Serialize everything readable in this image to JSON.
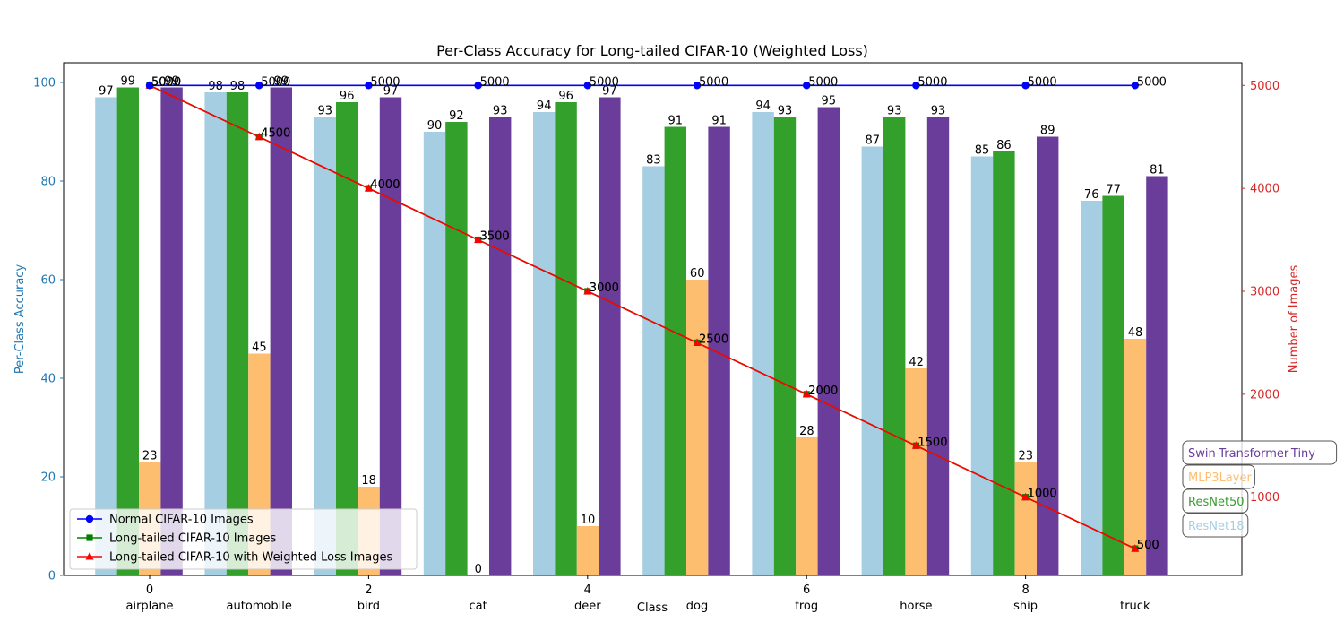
{
  "chart_data": {
    "type": "bar",
    "title": "Per-Class Accuracy for Long-tailed CIFAR-10 (Weighted Loss)",
    "xlabel": "Class",
    "ylabel": "Per-Class Accuracy",
    "ylabel_right": "Number of Images",
    "categories": [
      "airplane",
      "automobile",
      "bird",
      "cat",
      "deer",
      "dog",
      "frog",
      "horse",
      "ship",
      "truck"
    ],
    "x_ticks": [
      "0",
      "2",
      "4",
      "6",
      "8"
    ],
    "ylim": [
      0,
      104
    ],
    "ylim_right": [
      240,
      5220
    ],
    "y_ticks": [
      "0",
      "20",
      "40",
      "60",
      "80",
      "100"
    ],
    "y_ticks_right": [
      "1000",
      "2000",
      "3000",
      "4000",
      "5000"
    ],
    "bar_series": [
      {
        "name": "ResNet18",
        "color": "#a6cee3",
        "values": [
          97,
          98,
          93,
          90,
          94,
          83,
          94,
          87,
          85,
          76
        ]
      },
      {
        "name": "ResNet50",
        "color": "#33a02c",
        "values": [
          99,
          98,
          96,
          92,
          96,
          91,
          93,
          93,
          86,
          77
        ]
      },
      {
        "name": "MLP3Layer",
        "color": "#fdbf6f",
        "values": [
          23,
          45,
          18,
          0,
          10,
          60,
          28,
          42,
          23,
          48
        ]
      },
      {
        "name": "Swin-Transformer-Tiny",
        "color": "#6a3d9a",
        "values": [
          99,
          99,
          97,
          93,
          97,
          91,
          95,
          93,
          89,
          81
        ]
      }
    ],
    "line_series": [
      {
        "name": "Normal CIFAR-10 Images",
        "color": "#0000ff",
        "marker": "circle",
        "values": [
          5000,
          5000,
          5000,
          5000,
          5000,
          5000,
          5000,
          5000,
          5000,
          5000
        ]
      },
      {
        "name": "Long-tailed CIFAR-10 Images",
        "color": "#008000",
        "marker": "square",
        "values": [
          5000,
          4500,
          4000,
          3500,
          3000,
          2500,
          2000,
          1500,
          1000,
          500
        ]
      },
      {
        "name": "Long-tailed CIFAR-10 with Weighted Loss Images",
        "color": "#ff0000",
        "marker": "triangle",
        "values": [
          5000,
          4500,
          4000,
          3500,
          3000,
          2500,
          2000,
          1500,
          1000,
          500
        ]
      }
    ],
    "legend_lines_placement": "lower-left",
    "legend_bars_placement": "lower-right",
    "grid": false
  }
}
